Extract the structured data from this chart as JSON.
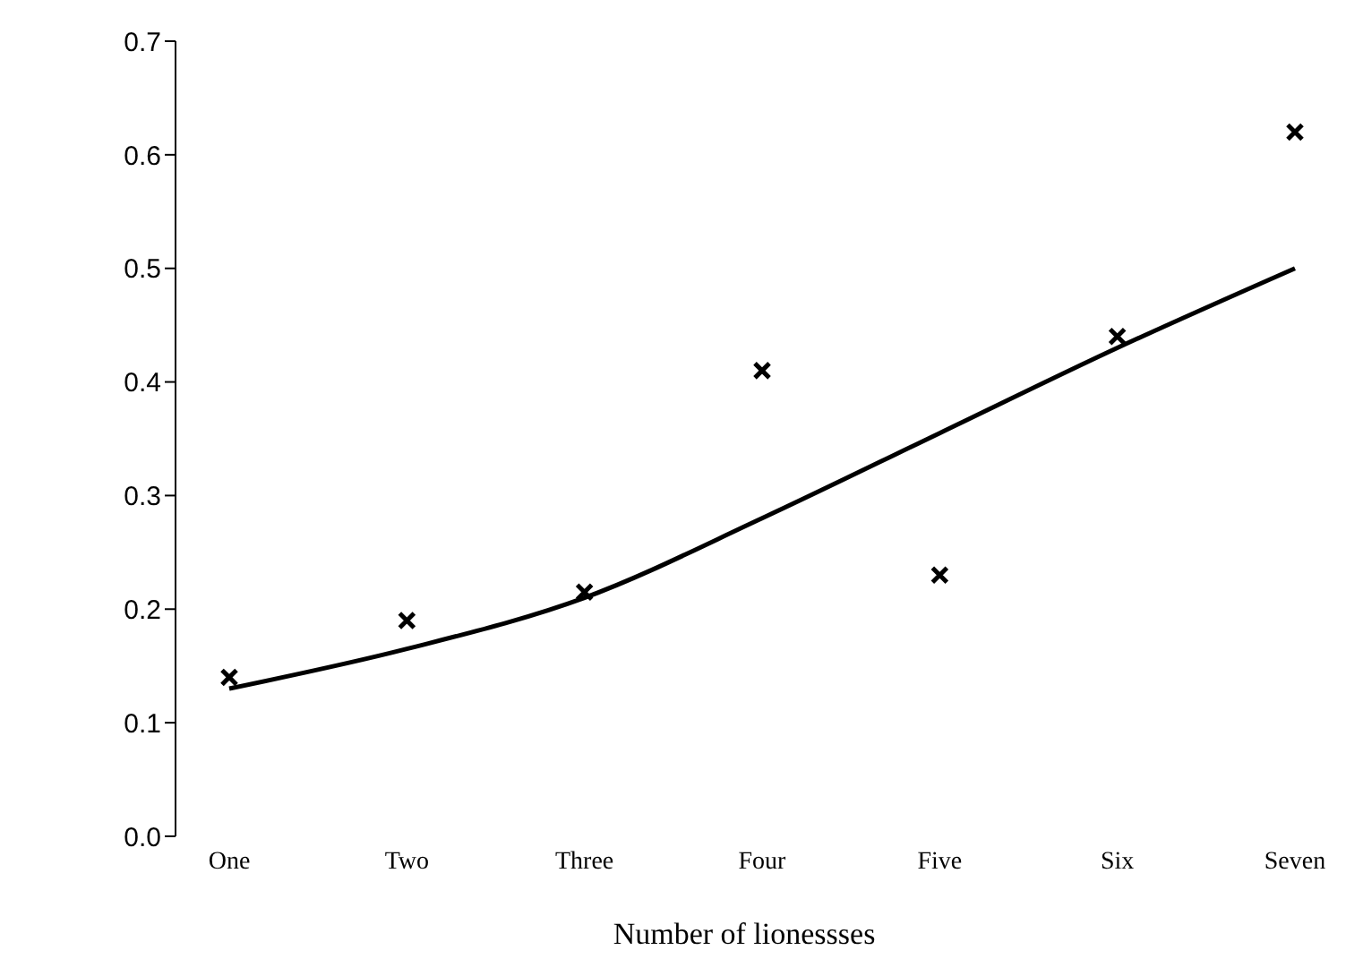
{
  "chart_data": {
    "type": "scatter",
    "xlabel": "Number of lionessses",
    "categories": [
      "One",
      "Two",
      "Three",
      "Four",
      "Five",
      "Six",
      "Seven"
    ],
    "series": [
      {
        "type": "line",
        "color": "#000000",
        "marker": "none",
        "line_style": "solid",
        "values": [
          0.13,
          0.165,
          0.21,
          0.28,
          0.355,
          0.43,
          0.5
        ]
      },
      {
        "color": "#000000",
        "marker": "cross",
        "values": [
          0.14,
          0.19,
          0.215,
          0.41,
          0.23,
          0.44,
          0.62
        ]
      }
    ],
    "ylim": [
      0,
      0.7
    ],
    "yticks": [
      {
        "value": 0,
        "label": "0.0"
      },
      {
        "value": 0.1,
        "label": "0.1"
      },
      {
        "value": 0.2,
        "label": "0.2"
      },
      {
        "value": 0.3,
        "label": "0.3"
      },
      {
        "value": 0.4,
        "label": "0.4"
      },
      {
        "value": 0.5,
        "label": "0.5"
      },
      {
        "value": 0.6,
        "label": "0.6"
      },
      {
        "value": 0.7,
        "label": "0.7"
      }
    ],
    "grid": false
  }
}
